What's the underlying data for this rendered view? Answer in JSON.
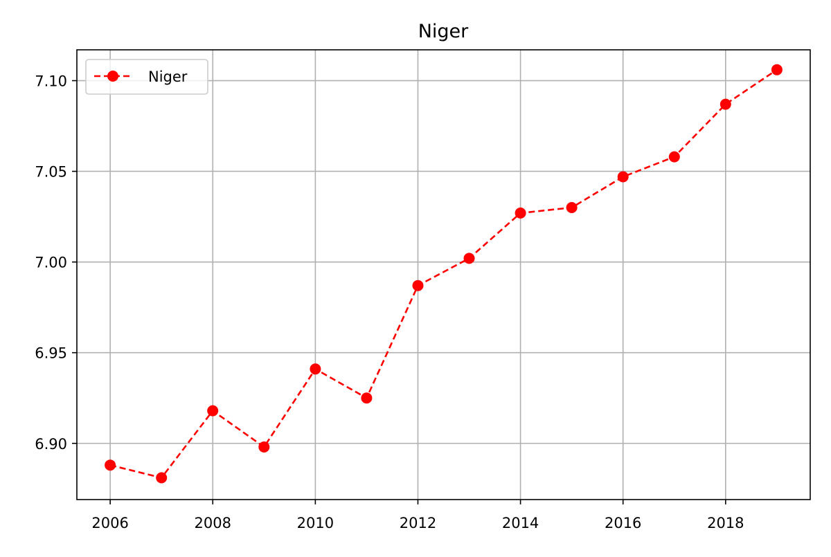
{
  "chart_data": {
    "type": "line",
    "title": "Niger",
    "xlabel": "",
    "ylabel": "",
    "x": [
      2006,
      2007,
      2008,
      2009,
      2010,
      2011,
      2012,
      2013,
      2014,
      2015,
      2016,
      2017,
      2018,
      2019
    ],
    "series": [
      {
        "name": "Niger",
        "color": "#ff0000",
        "line_style": "dashed",
        "marker": "circle",
        "values": [
          6.888,
          6.881,
          6.918,
          6.898,
          6.941,
          6.925,
          6.987,
          7.002,
          7.027,
          7.03,
          7.047,
          7.058,
          7.087,
          7.106
        ]
      }
    ],
    "xlim": [
      2005.35,
      2019.65
    ],
    "ylim": [
      6.869,
      7.117
    ],
    "x_ticks": [
      "2006",
      "2008",
      "2010",
      "2012",
      "2014",
      "2016",
      "2018"
    ],
    "y_ticks": [
      "6.90",
      "6.95",
      "7.00",
      "7.05",
      "7.10"
    ],
    "grid": true,
    "legend_position": "upper-left"
  }
}
